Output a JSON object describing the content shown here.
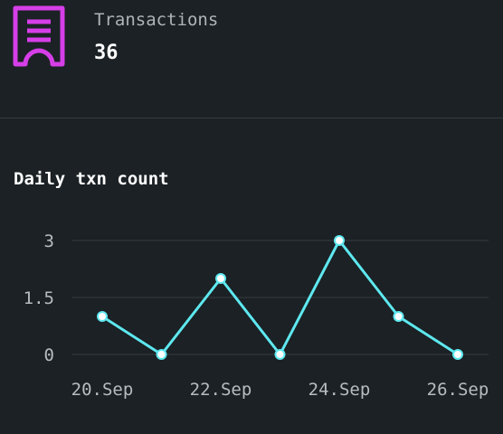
{
  "summary": {
    "icon": "receipt-icon",
    "label": "Transactions",
    "value": "36",
    "accent_color": "#d63ee8"
  },
  "chart_data": {
    "type": "line",
    "title": "Daily txn count",
    "x": [
      "20.Sep",
      "21.Sep",
      "22.Sep",
      "23.Sep",
      "24.Sep",
      "25.Sep",
      "26.Sep"
    ],
    "x_tick_labels": [
      "20.Sep",
      "22.Sep",
      "24.Sep",
      "26.Sep"
    ],
    "y_ticks": [
      "0",
      "1.5",
      "3"
    ],
    "ylim": [
      0,
      3
    ],
    "series": [
      {
        "values": [
          1,
          0,
          2,
          0,
          3,
          1,
          0
        ],
        "color": "#5ee8f0"
      }
    ],
    "grid": true,
    "legend": "none"
  }
}
